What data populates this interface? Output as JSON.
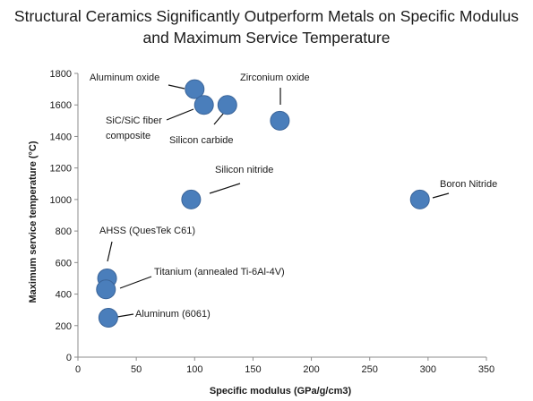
{
  "chart_data": {
    "type": "scatter",
    "title_line1": "Structural Ceramics Significantly Outperform Metals on Specific Modulus",
    "title_line2": "and Maximum Service Temperature",
    "xlabel": "Specific modulus (GPa/g/cm3)",
    "ylabel": "Maximum service temperature (°C)",
    "xlim": [
      0,
      350
    ],
    "ylim": [
      0,
      1800
    ],
    "xticks": [
      "0",
      "50",
      "100",
      "150",
      "200",
      "250",
      "300",
      "350"
    ],
    "yticks": [
      "0",
      "200",
      "400",
      "600",
      "800",
      "1000",
      "1200",
      "1400",
      "1600",
      "1800"
    ],
    "grid": false,
    "marker_color": "#4a7ebb",
    "marker_edge": "#3a6499",
    "points": [
      {
        "label": "Aluminum oxide",
        "x": 100,
        "y": 1700
      },
      {
        "label": "SiC/SiC fiber composite",
        "x": 108,
        "y": 1600
      },
      {
        "label": "Silicon carbide",
        "x": 128,
        "y": 1600
      },
      {
        "label": "Zirconium oxide",
        "x": 173,
        "y": 1500
      },
      {
        "label": "Silicon nitride",
        "x": 97,
        "y": 1000
      },
      {
        "label": "Boron Nitride",
        "x": 293,
        "y": 1000
      },
      {
        "label": "AHSS (QuesTek C61)",
        "x": 25,
        "y": 500
      },
      {
        "label": "Titanium (annealed Ti-6Al-4V)",
        "x": 24,
        "y": 430
      },
      {
        "label": "Aluminum (6061)",
        "x": 26,
        "y": 250
      }
    ],
    "annotations": [
      {
        "lines": [
          "Aluminum oxide"
        ]
      },
      {
        "lines": [
          "SiC/SiC fiber",
          "composite"
        ]
      },
      {
        "lines": [
          "Silicon carbide"
        ]
      },
      {
        "lines": [
          "Zirconium oxide"
        ]
      },
      {
        "lines": [
          "Silicon nitride"
        ]
      },
      {
        "lines": [
          "Boron Nitride"
        ]
      },
      {
        "lines": [
          "AHSS (QuesTek C61)"
        ]
      },
      {
        "lines": [
          "Titanium (annealed Ti-6Al-4V)"
        ]
      },
      {
        "lines": [
          "Aluminum (6061)"
        ]
      }
    ]
  }
}
